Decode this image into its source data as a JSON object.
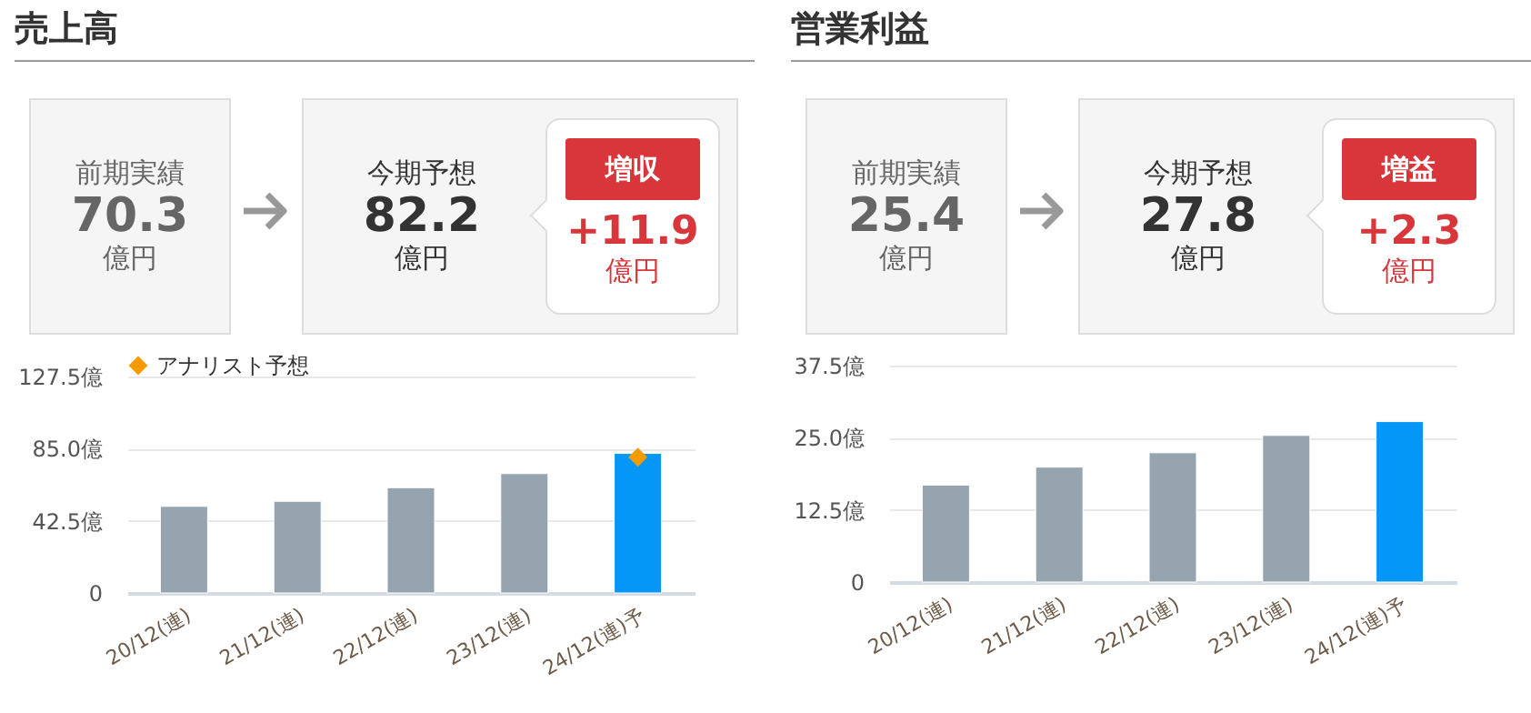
{
  "chart_data": [
    {
      "type": "other",
      "title": "売上高",
      "annotations": [
        "前期実績",
        "70.3",
        "億円",
        "今期予想",
        "82.2",
        "億円",
        "増収",
        "+11.9",
        "億円"
      ]
    },
    {
      "type": "bar",
      "categories": [
        "20/12(連)",
        "21/12(連)",
        "22/12(連)",
        "23/12(連)",
        "24/12(連)予"
      ],
      "series": [
        {
          "type": "bar",
          "colors": [
            "#96a4af",
            "#96a4af",
            "#96a4af",
            "#96a4af",
            "#0597f7"
          ],
          "values": [
            51,
            54,
            62,
            70.3,
            82.2
          ]
        },
        {
          "type": "scatter",
          "name": "アナリスト予想",
          "color": "#f59b00",
          "marker": "diamond",
          "values": [
            null,
            null,
            null,
            null,
            80
          ]
        }
      ],
      "ylim": [
        0,
        127.5
      ],
      "yticks": [
        0,
        {
          "value": 42.5,
          "label": "42.5億"
        },
        {
          "value": 85,
          "label": "85.0億"
        },
        {
          "value": 127.5,
          "label": "127.5億"
        }
      ],
      "grid": "y",
      "legend": "top"
    },
    {
      "type": "other",
      "title": "営業利益",
      "annotations": [
        "前期実績",
        "25.4",
        "億円",
        "今期予想",
        "27.8",
        "億円",
        "増益",
        "+2.3",
        "億円"
      ]
    },
    {
      "type": "bar",
      "categories": [
        "20/12(連)",
        "21/12(連)",
        "22/12(連)",
        "23/12(連)",
        "24/12(連)予"
      ],
      "series": [
        {
          "type": "bar",
          "colors": [
            "#96a4af",
            "#96a4af",
            "#96a4af",
            "#96a4af",
            "#0597f7"
          ],
          "values": [
            16.8,
            19.9,
            22.4,
            25.4,
            27.8
          ]
        }
      ],
      "ylim": [
        0,
        37.5
      ],
      "yticks": [
        0,
        {
          "value": 12.5,
          "label": "12.5億"
        },
        {
          "value": 25,
          "label": "25.0億"
        },
        {
          "value": 37.5,
          "label": "37.5億"
        }
      ],
      "grid": "y"
    }
  ]
}
